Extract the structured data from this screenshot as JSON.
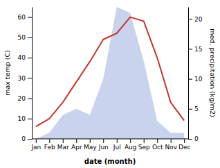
{
  "chart_data": {
    "type": "line",
    "xlabel": "date (month)",
    "ylabel": "max temp (C)",
    "y2label": "med. precipitation (kg/m2)",
    "categories": [
      "Jan",
      "Feb",
      "Mar",
      "Apr",
      "May",
      "Jun",
      "Jul",
      "Aug",
      "Sep",
      "Oct",
      "Nov",
      "Dec"
    ],
    "series": [
      {
        "type": "line",
        "color": "#c0392b",
        "values": [
          6,
          10,
          18,
          28,
          38,
          49,
          52,
          60,
          58,
          40,
          18,
          9
        ]
      },
      {
        "type": "area",
        "axis": "y2",
        "color": "#b8c4e8",
        "values": [
          0,
          1,
          4,
          5,
          4,
          10,
          22,
          21,
          13,
          3,
          1,
          1
        ]
      }
    ],
    "ylim": [
      0,
      65
    ],
    "yticks": [
      0,
      10,
      20,
      30,
      40,
      50,
      60
    ],
    "y2lim": [
      0,
      22
    ],
    "y2ticks": [
      0,
      5,
      10,
      15,
      20
    ],
    "grid": false
  }
}
